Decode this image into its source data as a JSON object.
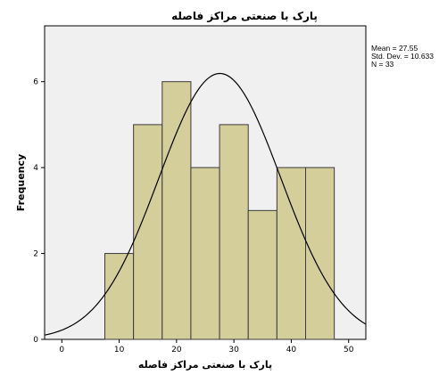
{
  "chart_data": {
    "type": "bar",
    "title": "پارک با صنعتی مراکز فاصله",
    "xlabel": "پارک با صنعتی مراکز فاصله",
    "ylabel": "Frequency",
    "bin_width": 5,
    "bins": [
      {
        "start": 7.5,
        "end": 12.5,
        "count": 2
      },
      {
        "start": 12.5,
        "end": 17.5,
        "count": 5
      },
      {
        "start": 17.5,
        "end": 22.5,
        "count": 6
      },
      {
        "start": 22.5,
        "end": 27.5,
        "count": 4
      },
      {
        "start": 27.5,
        "end": 32.5,
        "count": 5
      },
      {
        "start": 32.5,
        "end": 37.5,
        "count": 3
      },
      {
        "start": 37.5,
        "end": 42.5,
        "count": 4
      },
      {
        "start": 42.5,
        "end": 47.5,
        "count": 4
      }
    ],
    "xlim": [
      -3,
      53
    ],
    "ylim": [
      0,
      7.3
    ],
    "xticks": [
      0,
      10,
      20,
      30,
      40,
      50
    ],
    "yticks": [
      0,
      2,
      4,
      6
    ],
    "normal_curve": {
      "mean": 27.55,
      "std": 10.633,
      "n": 33
    },
    "stats": {
      "mean": "Mean = 27.55",
      "std": "Std. Dev. = 10.633",
      "n": "N = 33"
    },
    "grid": false,
    "colors": {
      "bar_fill": "#d4cf9a",
      "bar_stroke": "#3a3a3a",
      "plot_bg": "#f0f0f0",
      "curve": "#000000"
    }
  }
}
